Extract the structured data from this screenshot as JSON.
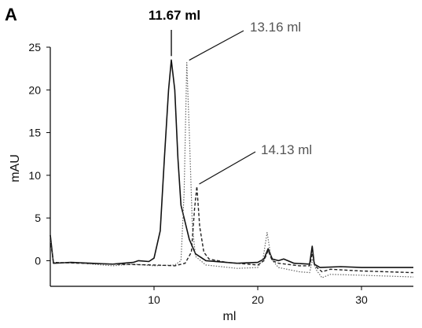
{
  "panel_label": "A",
  "chart_data": {
    "type": "line",
    "title": "",
    "xlabel": "ml",
    "ylabel": "mAU",
    "xlim": [
      0,
      35
    ],
    "ylim": [
      -3,
      25
    ],
    "x_ticks": [
      10,
      20,
      30
    ],
    "y_ticks": [
      0,
      5,
      10,
      15,
      20,
      25
    ],
    "grid": false,
    "legend": "none",
    "annotations": [
      {
        "text": "11.67 ml",
        "x": 11.67,
        "y": 23.5,
        "bold": true
      },
      {
        "text": "13.16 ml",
        "x": 13.16,
        "y": 23.2,
        "bold": false
      },
      {
        "text": "14.13 ml",
        "x": 14.13,
        "y": 8.7,
        "bold": false
      }
    ],
    "series": [
      {
        "style": "solid",
        "color": "#111111",
        "points": [
          [
            0,
            3.0
          ],
          [
            0.3,
            -0.3
          ],
          [
            2,
            -0.2
          ],
          [
            6,
            -0.4
          ],
          [
            8,
            -0.2
          ],
          [
            8.5,
            0.0
          ],
          [
            9.5,
            -0.1
          ],
          [
            10,
            0.3
          ],
          [
            10.6,
            3.5
          ],
          [
            11.0,
            12
          ],
          [
            11.4,
            20
          ],
          [
            11.67,
            23.5
          ],
          [
            12.0,
            20
          ],
          [
            12.3,
            12
          ],
          [
            12.6,
            6.5
          ],
          [
            13.0,
            4.5
          ],
          [
            13.4,
            2.5
          ],
          [
            14.0,
            0.8
          ],
          [
            15,
            0.0
          ],
          [
            18,
            -0.3
          ],
          [
            20,
            -0.2
          ],
          [
            20.6,
            0.2
          ],
          [
            21.0,
            1.4
          ],
          [
            21.4,
            0.2
          ],
          [
            22,
            0.0
          ],
          [
            22.5,
            0.2
          ],
          [
            23.5,
            -0.3
          ],
          [
            25.0,
            -0.4
          ],
          [
            25.25,
            1.7
          ],
          [
            25.45,
            -0.4
          ],
          [
            26,
            -0.8
          ],
          [
            28,
            -0.7
          ],
          [
            30,
            -0.8
          ],
          [
            35,
            -0.8
          ]
        ]
      },
      {
        "style": "dotted",
        "color": "#666666",
        "points": [
          [
            0,
            2.5
          ],
          [
            0.3,
            -0.2
          ],
          [
            3,
            -0.3
          ],
          [
            6,
            -0.6
          ],
          [
            8,
            -0.4
          ],
          [
            10,
            -0.6
          ],
          [
            12,
            -0.5
          ],
          [
            12.6,
            0.0
          ],
          [
            12.9,
            8
          ],
          [
            13.16,
            23.2
          ],
          [
            13.4,
            15
          ],
          [
            13.7,
            4
          ],
          [
            14.0,
            0.5
          ],
          [
            15,
            -0.5
          ],
          [
            18,
            -0.9
          ],
          [
            20,
            -0.8
          ],
          [
            20.5,
            0.2
          ],
          [
            20.9,
            3.3
          ],
          [
            21.3,
            0.2
          ],
          [
            22,
            -0.8
          ],
          [
            24,
            -1.3
          ],
          [
            25.0,
            -1.4
          ],
          [
            25.3,
            0.2
          ],
          [
            25.6,
            -1.0
          ],
          [
            26.2,
            -2.0
          ],
          [
            27,
            -1.6
          ],
          [
            30,
            -1.7
          ],
          [
            35,
            -1.9
          ]
        ]
      },
      {
        "style": "dashed",
        "color": "#222222",
        "points": [
          [
            0,
            2.5
          ],
          [
            0.3,
            -0.2
          ],
          [
            3,
            -0.3
          ],
          [
            6,
            -0.4
          ],
          [
            10,
            -0.5
          ],
          [
            12,
            -0.6
          ],
          [
            13,
            -0.3
          ],
          [
            13.6,
            1.0
          ],
          [
            13.9,
            6
          ],
          [
            14.13,
            8.7
          ],
          [
            14.4,
            4
          ],
          [
            14.8,
            1
          ],
          [
            15.3,
            0.2
          ],
          [
            17,
            -0.2
          ],
          [
            20,
            -0.5
          ],
          [
            20.6,
            0.0
          ],
          [
            21.0,
            1.2
          ],
          [
            21.4,
            0.0
          ],
          [
            22,
            -0.3
          ],
          [
            24,
            -0.6
          ],
          [
            25.0,
            -0.6
          ],
          [
            25.3,
            1.0
          ],
          [
            25.5,
            -0.6
          ],
          [
            26.2,
            -1.3
          ],
          [
            27,
            -1.0
          ],
          [
            30,
            -1.2
          ],
          [
            35,
            -1.4
          ]
        ]
      }
    ]
  }
}
